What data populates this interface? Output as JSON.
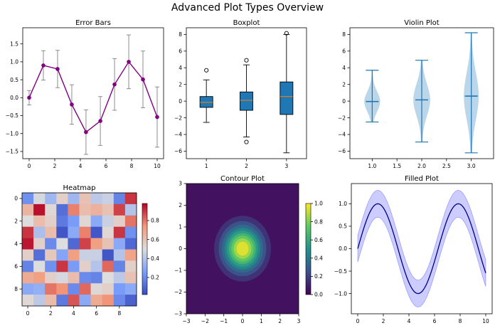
{
  "suptitle": "Advanced Plot Types Overview",
  "chart_data": [
    {
      "type": "line",
      "subtype": "errorbar",
      "title": "Error Bars",
      "x": [
        0,
        1.11,
        2.22,
        3.33,
        4.44,
        5.56,
        6.67,
        7.78,
        8.89,
        10
      ],
      "y": [
        0.0,
        0.9,
        0.8,
        -0.19,
        -0.96,
        -0.65,
        0.37,
        1.0,
        0.51,
        -0.54
      ],
      "yerr": [
        0.2,
        0.41,
        0.52,
        0.55,
        0.62,
        0.68,
        0.72,
        0.75,
        0.79,
        0.84
      ],
      "xlim": [
        -0.5,
        10.5
      ],
      "ylim": [
        -1.7,
        1.95
      ],
      "xticks": [
        0,
        2,
        4,
        6,
        8,
        10
      ],
      "yticks": [
        -1.5,
        -1.0,
        -0.5,
        0.0,
        0.5,
        1.0,
        1.5
      ],
      "color": "#800080",
      "errcolor": "#808080"
    },
    {
      "type": "box",
      "title": "Boxplot",
      "categories": [
        "1",
        "2",
        "3"
      ],
      "boxes": [
        {
          "whislo": -2.55,
          "q1": -0.75,
          "med": -0.15,
          "q3": 0.55,
          "whishi": 2.55,
          "fliers": [
            3.7
          ]
        },
        {
          "whislo": -4.3,
          "q1": -1.1,
          "med": 0.1,
          "q3": 1.1,
          "whishi": 4.35,
          "fliers": [
            4.9,
            -4.9
          ]
        },
        {
          "whislo": -6.2,
          "q1": -1.6,
          "med": 0.55,
          "q3": 2.3,
          "whishi": 8.0,
          "fliers": [
            8.15
          ]
        }
      ],
      "ylim": [
        -6.9,
        8.8
      ],
      "yticks": [
        -6,
        -4,
        -2,
        0,
        2,
        4,
        6,
        8
      ],
      "box_color": "#1f77b4",
      "median_color": "#ff7f0e"
    },
    {
      "type": "violin",
      "title": "Violin Plot",
      "positions": [
        1,
        2,
        3
      ],
      "violins": [
        {
          "min": -2.5,
          "max": 3.7,
          "median": -0.05,
          "max_width": 0.16
        },
        {
          "min": -4.9,
          "max": 4.9,
          "median": 0.15,
          "max_width": 0.17
        },
        {
          "min": -6.2,
          "max": 8.2,
          "median": 0.6,
          "max_width": 0.15
        }
      ],
      "xlim": [
        0.55,
        3.45
      ],
      "ylim": [
        -6.9,
        8.8
      ],
      "xticks": [
        1.0,
        1.5,
        2.0,
        2.5,
        3.0
      ],
      "xtick_labels": [
        "1.0",
        "1.5",
        "2.0",
        "2.5",
        "3.0"
      ],
      "yticks": [
        -6,
        -4,
        -2,
        0,
        2,
        4,
        6,
        8
      ],
      "color": "#1f77b4"
    },
    {
      "type": "heatmap",
      "title": "Heatmap",
      "colormap": "coolwarm",
      "matrix": [
        [
          0.22,
          0.48,
          0.35,
          0.55,
          0.35,
          0.6,
          0.42,
          0.45,
          0.18,
          0.9
        ],
        [
          0.65,
          0.96,
          0.52,
          0.12,
          0.78,
          0.62,
          0.66,
          0.6,
          0.88,
          0.4
        ],
        [
          0.5,
          0.62,
          0.55,
          0.15,
          0.25,
          0.52,
          0.3,
          0.45,
          0.55,
          0.8
        ],
        [
          0.9,
          0.38,
          0.62,
          0.05,
          0.3,
          0.78,
          0.05,
          0.52,
          0.9,
          0.22
        ],
        [
          0.95,
          0.55,
          0.2,
          0.5,
          0.1,
          0.88,
          0.72,
          0.6,
          0.3,
          0.1
        ],
        [
          0.55,
          0.12,
          0.58,
          0.28,
          0.72,
          0.45,
          0.45,
          0.05,
          0.4,
          0.7
        ],
        [
          0.18,
          0.5,
          0.22,
          0.9,
          0.25,
          0.55,
          0.4,
          0.82,
          0.18,
          0.55
        ],
        [
          0.68,
          0.72,
          0.55,
          0.48,
          0.62,
          0.2,
          0.18,
          0.5,
          0.42,
          0.6
        ],
        [
          0.3,
          0.32,
          0.8,
          0.75,
          0.2,
          0.82,
          0.52,
          0.55,
          0.25,
          0.3
        ],
        [
          0.52,
          0.42,
          0.62,
          0.15,
          0.85,
          0.3,
          0.68,
          0.75,
          0.2,
          0.08
        ]
      ],
      "xticks": [
        0,
        2,
        4,
        6,
        8
      ],
      "yticks": [
        0,
        2,
        4,
        6,
        8
      ],
      "colorbar_ticks": [
        0.2,
        0.4,
        0.6,
        0.8
      ],
      "colorbar_tick_labels": [
        "0.2",
        "0.4",
        "0.6",
        "0.8"
      ],
      "vmin": 0.02,
      "vmax": 0.98
    },
    {
      "type": "contour",
      "title": "Contour Plot",
      "function": "exp(-(x^2+y^2))",
      "colormap": "viridis",
      "xlim": [
        -3,
        3
      ],
      "ylim": [
        -3,
        3
      ],
      "xticks": [
        -3,
        -2,
        -1,
        0,
        1,
        2,
        3
      ],
      "yticks": [
        -3,
        -2,
        -1,
        0,
        1,
        2,
        3
      ],
      "levels": [
        0.0,
        0.1,
        0.2,
        0.3,
        0.4,
        0.5,
        0.6,
        0.7,
        0.8,
        0.9,
        1.0
      ],
      "colorbar_ticks": [
        0.0,
        0.2,
        0.4,
        0.6,
        0.8,
        1.0
      ],
      "colorbar_tick_labels": [
        "0.0",
        "0.2",
        "0.4",
        "0.6",
        "0.8",
        "1.0"
      ]
    },
    {
      "type": "area",
      "title": "Filled Plot",
      "function": "sin(x)",
      "band": 0.3,
      "xlim": [
        -0.5,
        10.5
      ],
      "ylim": [
        -1.45,
        1.45
      ],
      "xticks": [
        0,
        2,
        4,
        6,
        8,
        10
      ],
      "yticks": [
        -1.0,
        -0.5,
        0.0,
        0.5,
        1.0
      ],
      "line_color": "#00008b",
      "fill_color": "#0000ff"
    }
  ]
}
